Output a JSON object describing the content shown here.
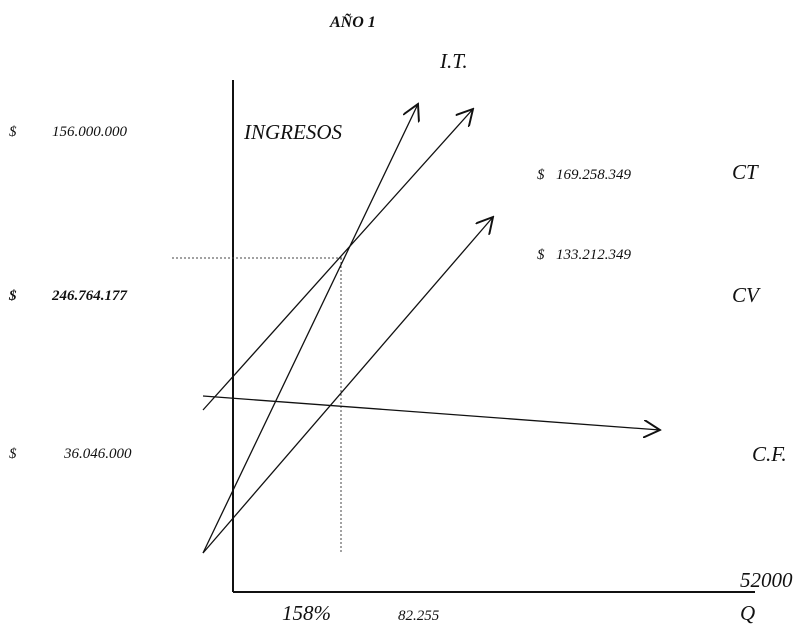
{
  "title": "AÑO 1",
  "curve_labels": {
    "it": "I.T.",
    "ct": "CT",
    "cv": "CV",
    "cf": "C.F."
  },
  "y_axis_label": "INGRESOS",
  "x_axis_label": "Q",
  "x_axis_end_value": "52000",
  "left_values": [
    {
      "currency": "$",
      "amount": "156.000.000",
      "bold": false
    },
    {
      "currency": "$",
      "amount": "246.764.177",
      "bold": true
    },
    {
      "currency": "$",
      "amount": "36.046.000",
      "bold": false
    }
  ],
  "right_values": [
    {
      "currency": "$",
      "amount": "169.258.349"
    },
    {
      "currency": "$",
      "amount": "133.212.349"
    }
  ],
  "bottom_labels": {
    "percent": "158%",
    "quantity": "82.255"
  }
}
